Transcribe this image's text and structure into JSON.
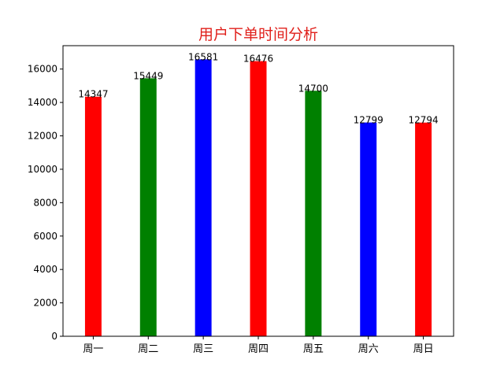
{
  "chart_data": {
    "type": "bar",
    "title": "用户下单时间分析",
    "title_color": "#e0201b",
    "xlabel": "",
    "ylabel": "",
    "categories": [
      "周一",
      "周二",
      "周三",
      "周四",
      "周五",
      "周六",
      "周日"
    ],
    "values": [
      14347,
      15449,
      16581,
      16476,
      14700,
      12799,
      12794
    ],
    "data_labels": [
      "14347",
      "15449",
      "16581",
      "16476",
      "14700",
      "12799",
      "12794"
    ],
    "bar_colors": [
      "#ff0000",
      "#008000",
      "#0000ff",
      "#ff0000",
      "#008000",
      "#0000ff",
      "#ff0000"
    ],
    "ylim": [
      0,
      17400
    ],
    "yticks": [
      0,
      2000,
      4000,
      6000,
      8000,
      10000,
      12000,
      14000,
      16000
    ],
    "ytick_labels": [
      "0",
      "2000",
      "4000",
      "6000",
      "8000",
      "10000",
      "12000",
      "14000",
      "16000"
    ],
    "grid": false,
    "legend": "none"
  }
}
